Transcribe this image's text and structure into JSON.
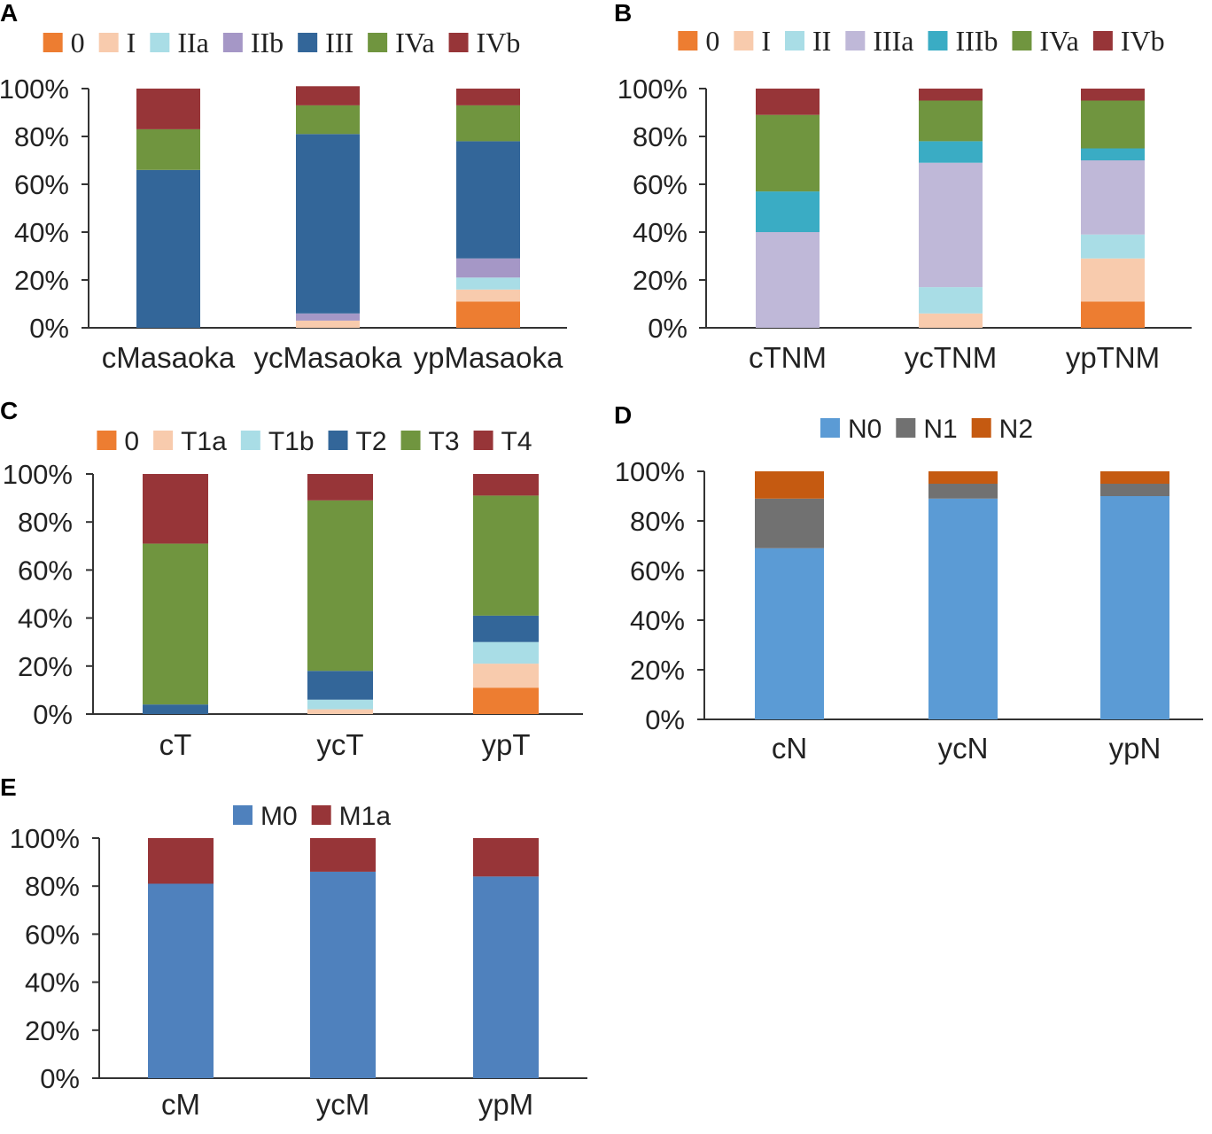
{
  "figure": {
    "panel_count": 5
  },
  "chart_data": [
    {
      "panel": "A",
      "type": "bar",
      "stacked": true,
      "legend_font": "roman",
      "categories": [
        "cMasaoka",
        "ycMasaoka",
        "ypMasaoka"
      ],
      "ylim": [
        0,
        100
      ],
      "yticks": [
        "0%",
        "20%",
        "40%",
        "60%",
        "80%",
        "100%"
      ],
      "series": [
        {
          "name": "0",
          "color": "#ED7D31",
          "values": [
            0,
            0,
            11
          ]
        },
        {
          "name": "I",
          "color": "#F8CBAD",
          "values": [
            0,
            3,
            5
          ]
        },
        {
          "name": "IIa",
          "color": "#A9DDE6",
          "values": [
            0,
            0,
            5
          ]
        },
        {
          "name": "IIb",
          "color": "#A597C6",
          "values": [
            0,
            3,
            8
          ]
        },
        {
          "name": "III",
          "color": "#336699",
          "values": [
            66,
            75,
            49
          ]
        },
        {
          "name": "IVa",
          "color": "#70953F",
          "values": [
            17,
            12,
            15
          ]
        },
        {
          "name": "IVb",
          "color": "#973538",
          "values": [
            17,
            8,
            7
          ]
        }
      ]
    },
    {
      "panel": "B",
      "type": "bar",
      "stacked": true,
      "legend_font": "roman",
      "categories": [
        "cTNM",
        "ycTNM",
        "ypTNM"
      ],
      "ylim": [
        0,
        100
      ],
      "yticks": [
        "0%",
        "20%",
        "40%",
        "60%",
        "80%",
        "100%"
      ],
      "series": [
        {
          "name": "0",
          "color": "#ED7D31",
          "values": [
            0,
            0,
            11
          ]
        },
        {
          "name": "I",
          "color": "#F8CBAD",
          "values": [
            0,
            6,
            18
          ]
        },
        {
          "name": "II",
          "color": "#A9DDE6",
          "values": [
            0,
            11,
            10
          ]
        },
        {
          "name": "IIIa",
          "color": "#BFB8D8",
          "values": [
            40,
            52,
            31
          ]
        },
        {
          "name": "IIIb",
          "color": "#3AACC4",
          "values": [
            17,
            9,
            5
          ]
        },
        {
          "name": "IVa",
          "color": "#70953F",
          "values": [
            32,
            17,
            20
          ]
        },
        {
          "name": "IVb",
          "color": "#973538",
          "values": [
            11,
            5,
            5
          ]
        }
      ]
    },
    {
      "panel": "C",
      "type": "bar",
      "stacked": true,
      "legend_font": "sans",
      "categories": [
        "cT",
        "ycT",
        "ypT"
      ],
      "ylim": [
        0,
        100
      ],
      "yticks": [
        "0%",
        "20%",
        "40%",
        "60%",
        "80%",
        "100%"
      ],
      "series": [
        {
          "name": "0",
          "color": "#ED7D31",
          "values": [
            0,
            0,
            11
          ]
        },
        {
          "name": "T1a",
          "color": "#F8CBAD",
          "values": [
            0,
            2,
            10
          ]
        },
        {
          "name": "T1b",
          "color": "#A9DDE6",
          "values": [
            0,
            4,
            9
          ]
        },
        {
          "name": "T2",
          "color": "#336699",
          "values": [
            4,
            12,
            11
          ]
        },
        {
          "name": "T3",
          "color": "#70953F",
          "values": [
            67,
            71,
            50
          ]
        },
        {
          "name": "T4",
          "color": "#973538",
          "values": [
            29,
            11,
            9
          ]
        }
      ]
    },
    {
      "panel": "D",
      "type": "bar",
      "stacked": true,
      "legend_font": "sans",
      "categories": [
        "cN",
        "ycN",
        "ypN"
      ],
      "ylim": [
        0,
        100
      ],
      "yticks": [
        "0%",
        "20%",
        "40%",
        "60%",
        "80%",
        "100%"
      ],
      "series": [
        {
          "name": "N0",
          "color": "#5B9BD5",
          "values": [
            69,
            89,
            90
          ]
        },
        {
          "name": "N1",
          "color": "#717171",
          "values": [
            20,
            6,
            5
          ]
        },
        {
          "name": "N2",
          "color": "#C55A11",
          "values": [
            11,
            5,
            5
          ]
        }
      ]
    },
    {
      "panel": "E",
      "type": "bar",
      "stacked": true,
      "legend_font": "sans",
      "categories": [
        "cM",
        "ycM",
        "ypM"
      ],
      "ylim": [
        0,
        100
      ],
      "yticks": [
        "0%",
        "20%",
        "40%",
        "60%",
        "80%",
        "100%"
      ],
      "series": [
        {
          "name": "M0",
          "color": "#4F81BD",
          "values": [
            81,
            86,
            84
          ]
        },
        {
          "name": "M1a",
          "color": "#973538",
          "values": [
            19,
            14,
            16
          ]
        }
      ]
    }
  ]
}
